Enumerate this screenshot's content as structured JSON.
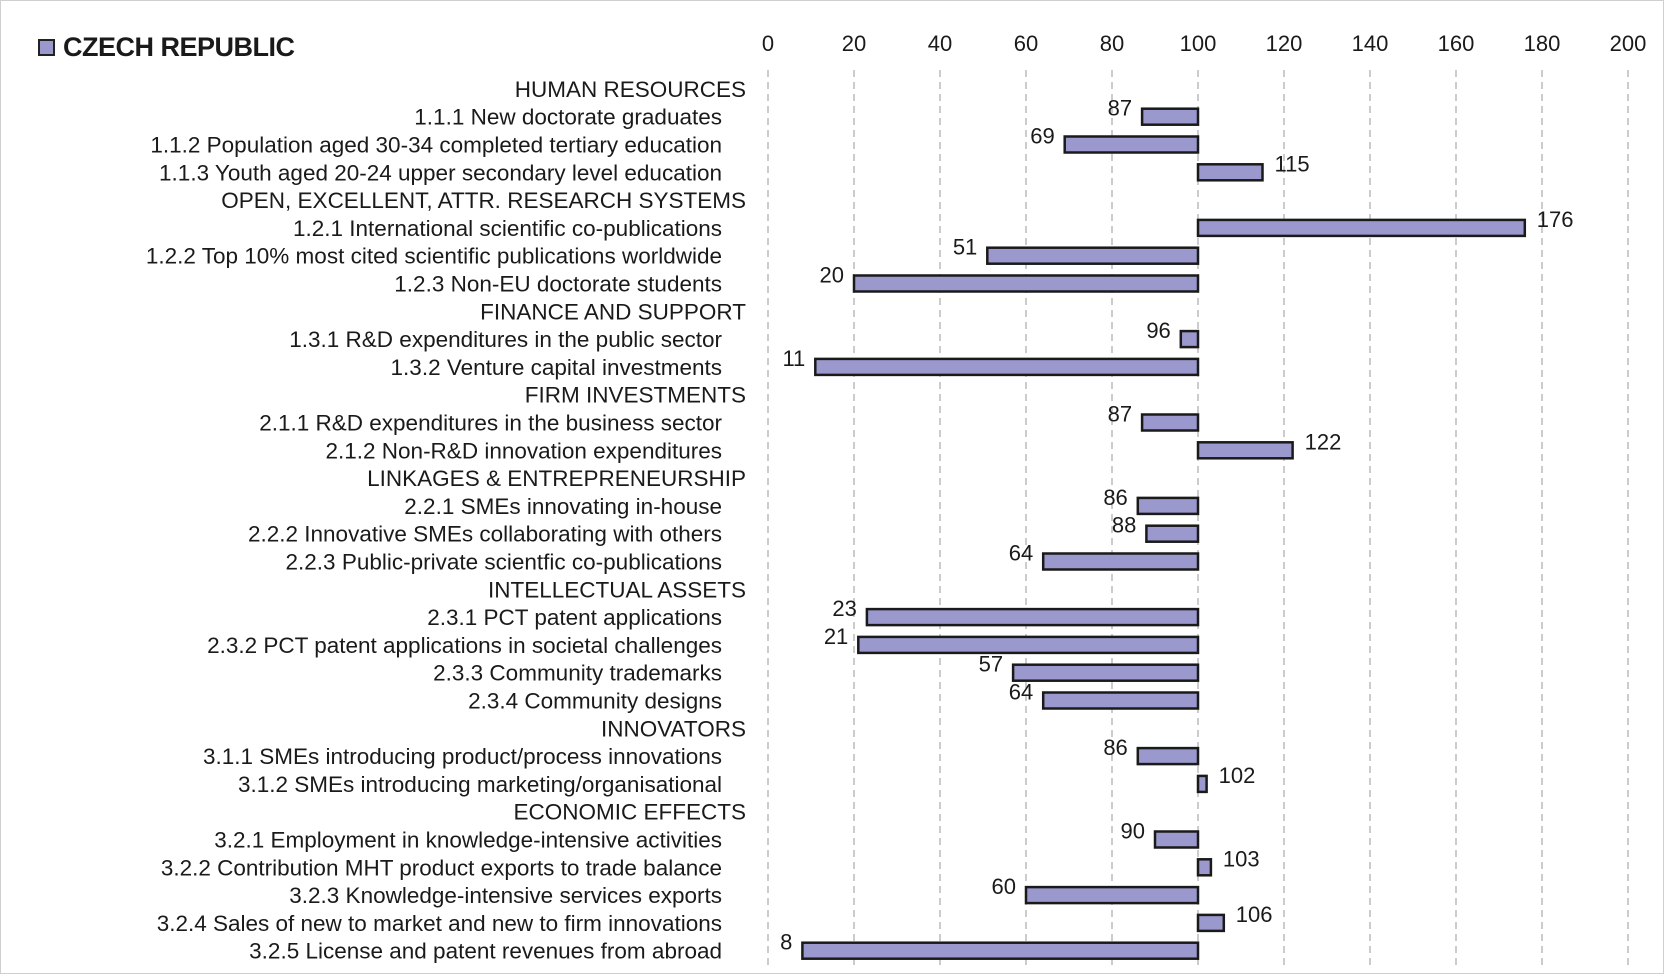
{
  "chart_data": {
    "type": "bar",
    "orientation": "horizontal",
    "baseline": 100,
    "xlim": [
      0,
      200
    ],
    "x_ticks": [
      "0",
      "20",
      "40",
      "60",
      "80",
      "100",
      "120",
      "140",
      "160",
      "180",
      "200"
    ],
    "grid": true,
    "bar_color": "#9a98cc",
    "series": [
      {
        "name": "CZECH REPUBLIC"
      }
    ],
    "rows": [
      {
        "kind": "header",
        "label": "HUMAN RESOURCES"
      },
      {
        "kind": "bar",
        "label": "1.1.1 New doctorate graduates",
        "value": 87,
        "value_label": "87"
      },
      {
        "kind": "bar",
        "label": "1.1.2 Population aged 30-34 completed tertiary education",
        "value": 69,
        "value_label": "69"
      },
      {
        "kind": "bar",
        "label": "1.1.3 Youth aged 20-24 upper secondary level education",
        "value": 115,
        "value_label": "115"
      },
      {
        "kind": "header",
        "label": "OPEN, EXCELLENT, ATTR. RESEARCH SYSTEMS"
      },
      {
        "kind": "bar",
        "label": "1.2.1 International scientific co-publications",
        "value": 176,
        "value_label": "176"
      },
      {
        "kind": "bar",
        "label": "1.2.2 Top 10% most cited scientific publications worldwide",
        "value": 51,
        "value_label": "51"
      },
      {
        "kind": "bar",
        "label": "1.2.3 Non-EU doctorate students",
        "value": 20,
        "value_label": "20"
      },
      {
        "kind": "header",
        "label": "FINANCE AND SUPPORT"
      },
      {
        "kind": "bar",
        "label": "1.3.1 R&D expenditures in the public sector",
        "value": 96,
        "value_label": "96"
      },
      {
        "kind": "bar",
        "label": "1.3.2 Venture capital investments",
        "value": 11,
        "value_label": "11"
      },
      {
        "kind": "header",
        "label": "FIRM INVESTMENTS"
      },
      {
        "kind": "bar",
        "label": "2.1.1 R&D expenditures in the business sector",
        "value": 87,
        "value_label": "87"
      },
      {
        "kind": "bar",
        "label": "2.1.2 Non-R&D innovation expenditures",
        "value": 122,
        "value_label": "122"
      },
      {
        "kind": "header",
        "label": "LINKAGES & ENTREPRENEURSHIP"
      },
      {
        "kind": "bar",
        "label": "2.2.1 SMEs innovating in-house",
        "value": 86,
        "value_label": "86"
      },
      {
        "kind": "bar",
        "label": "2.2.2 Innovative SMEs collaborating with others",
        "value": 88,
        "value_label": "88"
      },
      {
        "kind": "bar",
        "label": "2.2.3 Public-private scientfic co-publications",
        "value": 64,
        "value_label": "64"
      },
      {
        "kind": "header",
        "label": "INTELLECTUAL ASSETS"
      },
      {
        "kind": "bar",
        "label": "2.3.1 PCT patent applications",
        "value": 23,
        "value_label": "23"
      },
      {
        "kind": "bar",
        "label": "2.3.2 PCT patent applications in societal challenges",
        "value": 21,
        "value_label": "21"
      },
      {
        "kind": "bar",
        "label": "2.3.3 Community trademarks",
        "value": 57,
        "value_label": "57"
      },
      {
        "kind": "bar",
        "label": "2.3.4 Community designs",
        "value": 64,
        "value_label": "64"
      },
      {
        "kind": "header",
        "label": "INNOVATORS"
      },
      {
        "kind": "bar",
        "label": "3.1.1 SMEs introducing product/process innovations",
        "value": 86,
        "value_label": "86"
      },
      {
        "kind": "bar",
        "label": "3.1.2 SMEs introducing marketing/organisational",
        "value": 102,
        "value_label": "102"
      },
      {
        "kind": "header",
        "label": "ECONOMIC EFFECTS"
      },
      {
        "kind": "bar",
        "label": "3.2.1 Employment in knowledge-intensive activities",
        "value": 90,
        "value_label": "90"
      },
      {
        "kind": "bar",
        "label": "3.2.2 Contribution MHT product exports to trade balance",
        "value": 103,
        "value_label": "103"
      },
      {
        "kind": "bar",
        "label": "3.2.3 Knowledge-intensive services exports",
        "value": 60,
        "value_label": "60"
      },
      {
        "kind": "bar",
        "label": "3.2.4 Sales of new to market and new to firm innovations",
        "value": 106,
        "value_label": "106"
      },
      {
        "kind": "bar",
        "label": "3.2.5 License and patent revenues from abroad",
        "value": 8,
        "value_label": "8"
      }
    ]
  }
}
